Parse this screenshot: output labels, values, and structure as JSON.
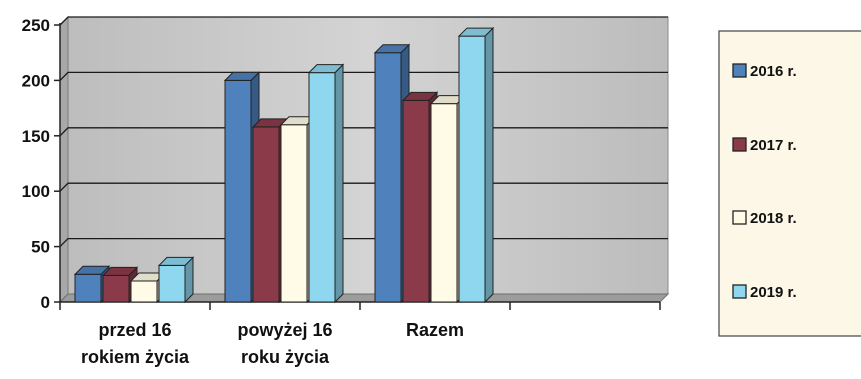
{
  "chart_data": {
    "type": "bar",
    "title": "",
    "xlabel": "",
    "ylabel": "",
    "ylim": [
      0,
      250
    ],
    "yticks": [
      0,
      50,
      100,
      150,
      200,
      250
    ],
    "grid": true,
    "legend_position": "right",
    "categories": [
      [
        "przed 16",
        "rokiem życia"
      ],
      [
        "powyżej 16",
        "roku życia"
      ],
      [
        "Razem"
      ]
    ],
    "series": [
      {
        "name": "2016 r.",
        "values": [
          25,
          200,
          225
        ],
        "color": "#4f81bd"
      },
      {
        "name": "2017 r.",
        "values": [
          24,
          158,
          182
        ],
        "color": "#8b3a4a"
      },
      {
        "name": "2018 r.",
        "values": [
          19,
          160,
          179
        ],
        "color": "#fffbe6"
      },
      {
        "name": "2019 r.",
        "values": [
          33,
          207,
          240
        ],
        "color": "#8fd6ef"
      }
    ]
  }
}
